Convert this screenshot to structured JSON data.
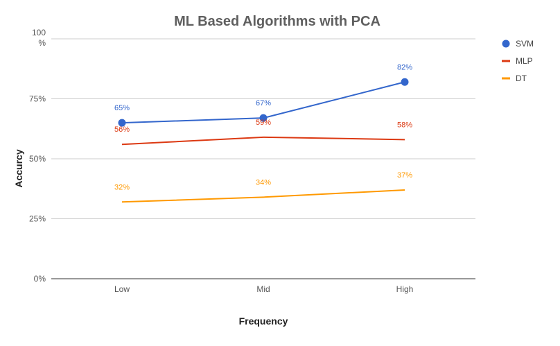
{
  "chart_data": {
    "type": "line",
    "title": "ML Based Algorithms with PCA",
    "xlabel": "Frequency",
    "ylabel": "Accurcy",
    "categories": [
      "Low",
      "Mid",
      "High"
    ],
    "ylim": [
      0,
      100
    ],
    "yticks": [
      {
        "value": 0,
        "label": "0%"
      },
      {
        "value": 25,
        "label": "25%"
      },
      {
        "value": 50,
        "label": "50%"
      },
      {
        "value": 75,
        "label": "75%"
      },
      {
        "value": 100,
        "label": "100%"
      }
    ],
    "grid": true,
    "legend_position": "right",
    "series": [
      {
        "name": "SVM",
        "color": "#3366cc",
        "markers": true,
        "values": [
          65,
          67,
          82
        ],
        "labels": [
          "65%",
          "67%",
          "82%"
        ]
      },
      {
        "name": "MLP",
        "color": "#dc3912",
        "markers": false,
        "values": [
          56,
          59,
          58
        ],
        "labels": [
          "56%",
          "59%",
          "58%"
        ]
      },
      {
        "name": "DT",
        "color": "#ff9900",
        "markers": false,
        "values": [
          32,
          34,
          37
        ],
        "labels": [
          "32%",
          "34%",
          "37%"
        ]
      }
    ]
  }
}
